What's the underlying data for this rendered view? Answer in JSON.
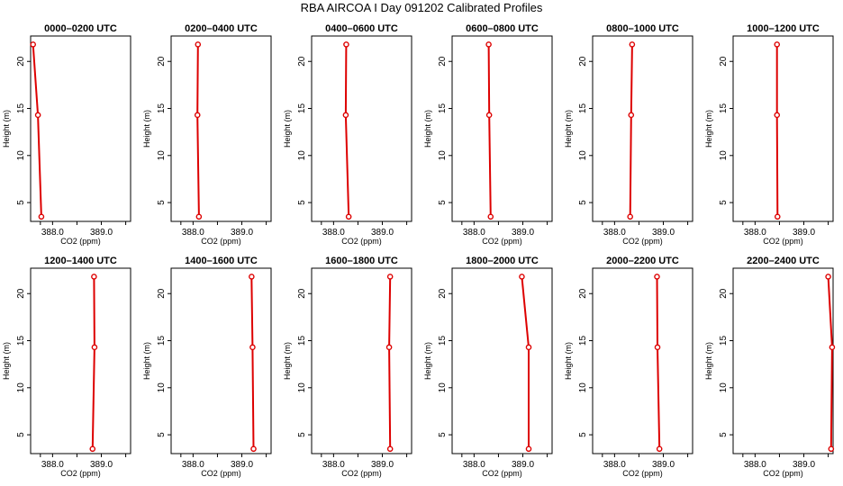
{
  "title": "RBA AIRCOA I  Day 091202  Calibrated Profiles",
  "chart_data": {
    "type": "line",
    "panels_per_row": 6,
    "xlabel": "CO2 (ppm)",
    "ylabel": "Height (m)",
    "xlim": [
      387.55,
      389.6
    ],
    "ylim": [
      3.0,
      22.7
    ],
    "xticks": [
      387.75,
      388.0,
      388.5,
      389.0,
      389.5
    ],
    "xtick_labels": [
      "",
      "388.0",
      "",
      "389.0",
      ""
    ],
    "yticks": [
      5,
      10,
      15,
      20
    ],
    "line_color": "#dd0000",
    "marker": "open-circle",
    "panels": [
      {
        "title": "0000–0200 UTC",
        "x": [
          387.6,
          387.7,
          387.77
        ],
        "y": [
          21.8,
          14.3,
          3.5
        ]
      },
      {
        "title": "0200–0400 UTC",
        "x": [
          388.1,
          388.09,
          388.12
        ],
        "y": [
          21.8,
          14.3,
          3.5
        ]
      },
      {
        "title": "0400–0600 UTC",
        "x": [
          388.26,
          388.25,
          388.31
        ],
        "y": [
          21.8,
          14.3,
          3.5
        ]
      },
      {
        "title": "0600–0800 UTC",
        "x": [
          388.3,
          388.31,
          388.34
        ],
        "y": [
          21.8,
          14.3,
          3.5
        ]
      },
      {
        "title": "0800–1000 UTC",
        "x": [
          388.36,
          388.34,
          388.32
        ],
        "y": [
          21.8,
          14.3,
          3.5
        ]
      },
      {
        "title": "1000–1200 UTC",
        "x": [
          388.45,
          388.45,
          388.46
        ],
        "y": [
          21.8,
          14.3,
          3.5
        ]
      },
      {
        "title": "1200–1400 UTC",
        "x": [
          388.85,
          388.86,
          388.82
        ],
        "y": [
          21.8,
          14.3,
          3.5
        ]
      },
      {
        "title": "1400–1600 UTC",
        "x": [
          389.2,
          389.22,
          389.24
        ],
        "y": [
          21.8,
          14.3,
          3.5
        ]
      },
      {
        "title": "1600–1800 UTC",
        "x": [
          389.16,
          389.14,
          389.16
        ],
        "y": [
          21.8,
          14.3,
          3.5
        ]
      },
      {
        "title": "1800–2000 UTC",
        "x": [
          388.98,
          389.12,
          389.12
        ],
        "y": [
          21.8,
          14.3,
          3.5
        ]
      },
      {
        "title": "2000–2200 UTC",
        "x": [
          388.87,
          388.88,
          388.92
        ],
        "y": [
          21.8,
          14.3,
          3.5
        ]
      },
      {
        "title": "2200–2400 UTC",
        "x": [
          389.5,
          389.58,
          389.56
        ],
        "y": [
          21.8,
          14.3,
          3.5
        ]
      }
    ]
  }
}
